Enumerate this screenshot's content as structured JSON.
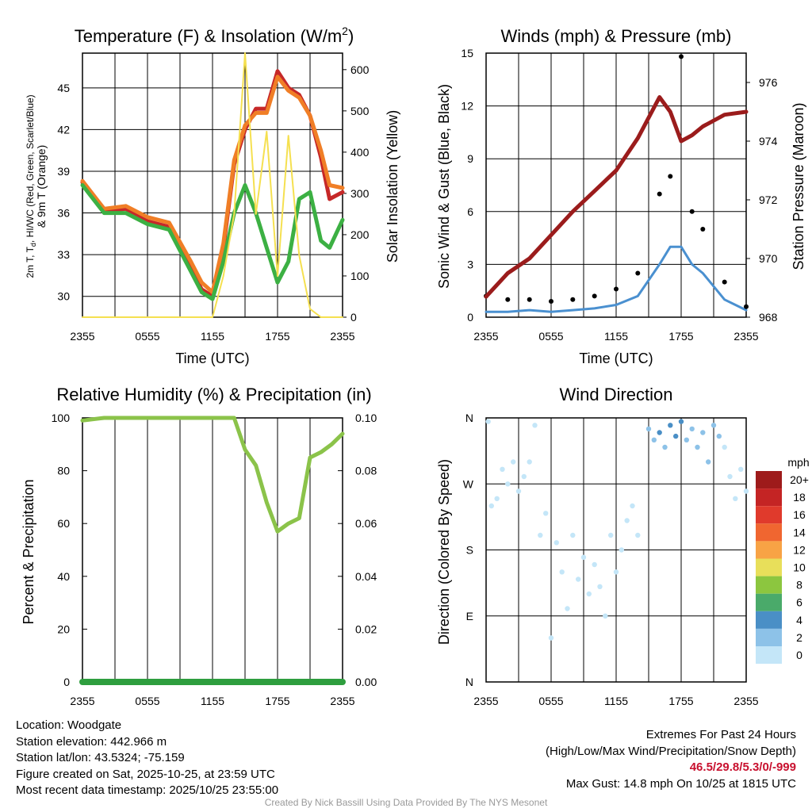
{
  "chart_data": [
    {
      "type": "line",
      "title": "Temperature (F) & Insolation (W/m²)",
      "title_main": "Temperature (F) & Insolation (W/m",
      "title_sup": "2",
      "title_tail": ")",
      "xlabel": "Time (UTC)",
      "ylabel_line1": "2m T, T",
      "ylabel_sub": "d",
      "ylabel_line1_tail": ", HI/WC (Red, Green, Scarlet/Blue)",
      "ylabel_line2": "& 9m T (Orange)",
      "ylabel_right": "Solar Insolation (Yellow)",
      "xticks": [
        "2355",
        "0555",
        "1155",
        "1755",
        "2355"
      ],
      "ylim": [
        28.5,
        47.5
      ],
      "yticks": [
        30,
        33,
        36,
        39,
        42,
        45
      ],
      "y2lim": [
        0,
        640
      ],
      "y2ticks": [
        0,
        100,
        200,
        300,
        400,
        500,
        600
      ],
      "x_hours": [
        0,
        2,
        4,
        6,
        8,
        10,
        11,
        12,
        13,
        14,
        15,
        16,
        17,
        18,
        19,
        20,
        21,
        22,
        22.8,
        24
      ],
      "series": [
        {
          "name": "2m T",
          "color": "#c62828",
          "values": [
            38.2,
            36.1,
            36.3,
            35.4,
            35.0,
            32.0,
            30.5,
            30.0,
            33.5,
            39.5,
            42.0,
            43.5,
            43.5,
            46.2,
            45.0,
            44.5,
            43.0,
            40.0,
            37.0,
            37.5
          ]
        },
        {
          "name": "9m T",
          "color": "#f07e26",
          "values": [
            38.3,
            36.3,
            36.5,
            35.7,
            35.3,
            32.5,
            31.0,
            30.3,
            33.8,
            39.8,
            42.3,
            43.2,
            43.2,
            45.8,
            44.8,
            44.3,
            43.0,
            40.5,
            38.0,
            37.8
          ]
        },
        {
          "name": "Td",
          "color": "#3cb043",
          "values": [
            38.0,
            36.0,
            36.0,
            35.2,
            34.8,
            31.8,
            30.3,
            29.8,
            32.5,
            36.0,
            38.0,
            36.0,
            33.5,
            31.0,
            32.5,
            37.0,
            37.5,
            34.0,
            33.5,
            35.5
          ]
        },
        {
          "name": "Solar Insolation",
          "color": "#f5e050",
          "axis": "right",
          "values": [
            0,
            0,
            0,
            0,
            0,
            0,
            0,
            0,
            100,
            250,
            640,
            250,
            450,
            100,
            440,
            150,
            20,
            0,
            0,
            0
          ]
        }
      ]
    },
    {
      "type": "line",
      "title": "Winds (mph) & Pressure (mb)",
      "xlabel": "Time (UTC)",
      "ylabel": "Sonic Wind & Gust (Blue, Black)",
      "ylabel_right": "Station Pressure (Maroon)",
      "xticks": [
        "2355",
        "0555",
        "1155",
        "1755",
        "2355"
      ],
      "ylim": [
        0,
        15
      ],
      "yticks": [
        0,
        3,
        6,
        9,
        12,
        15
      ],
      "y2lim": [
        968,
        977
      ],
      "y2ticks": [
        968,
        970,
        972,
        974,
        976
      ],
      "x_hours": [
        0,
        2,
        4,
        6,
        8,
        10,
        12,
        14,
        16,
        17,
        18,
        19,
        20,
        22,
        24
      ],
      "series": [
        {
          "name": "Sonic Wind",
          "color": "#4a90d0",
          "values": [
            0.3,
            0.3,
            0.4,
            0.3,
            0.4,
            0.5,
            0.7,
            1.2,
            3.0,
            4.0,
            4.0,
            3.0,
            2.5,
            1.0,
            0.4
          ]
        },
        {
          "name": "Wind Gust",
          "color": "#000000",
          "style": "dots",
          "values": [
            1.2,
            1.0,
            1.0,
            0.9,
            1.0,
            1.2,
            1.6,
            2.5,
            7.0,
            8.0,
            14.8,
            6.0,
            5.0,
            2.0,
            0.6
          ]
        },
        {
          "name": "Station Pressure",
          "color": "#9b1c1c",
          "axis": "right",
          "values": [
            968.7,
            969.5,
            970.0,
            970.8,
            971.6,
            972.3,
            973.0,
            974.1,
            975.5,
            975.0,
            974.0,
            974.2,
            974.5,
            974.9,
            975.0
          ]
        }
      ]
    },
    {
      "type": "line",
      "title": "Relative Humidity (%) & Precipitation (in)",
      "ylabel": "Percent & Precipitation",
      "xticks": [
        "2355",
        "0555",
        "1155",
        "1755",
        "2355"
      ],
      "ylim": [
        0,
        100
      ],
      "yticks": [
        0,
        20,
        40,
        60,
        80,
        100
      ],
      "y2lim": [
        0,
        0.1
      ],
      "y2ticks": [
        "0.00",
        "0.02",
        "0.04",
        "0.06",
        "0.08",
        "0.10"
      ],
      "x_hours": [
        0,
        2,
        4,
        6,
        8,
        10,
        12,
        14,
        15,
        16,
        17,
        18,
        19,
        20,
        21,
        22,
        23,
        24
      ],
      "series": [
        {
          "name": "Relative Humidity",
          "color": "#8bc34a",
          "values": [
            99,
            100,
            100,
            100,
            100,
            100,
            100,
            100,
            88,
            82,
            68,
            57,
            60,
            62,
            85,
            87,
            90,
            94
          ]
        },
        {
          "name": "Precipitation",
          "color": "#2e9e3e",
          "axis": "right",
          "values": [
            0,
            0,
            0,
            0,
            0,
            0,
            0,
            0,
            0,
            0,
            0,
            0,
            0,
            0,
            0,
            0,
            0,
            0
          ]
        }
      ]
    },
    {
      "type": "scatter",
      "title": "Wind Direction",
      "ylabel": "Direction (Colored By Speed)",
      "xticks": [
        "2355",
        "0555",
        "1155",
        "1755",
        "2355"
      ],
      "yticks": [
        "N",
        "E",
        "S",
        "W",
        "N"
      ],
      "ylim": [
        0,
        360
      ],
      "colorbar": {
        "title": "mph",
        "labels": [
          "20+",
          "18",
          "16",
          "14",
          "12",
          "10",
          "8",
          "6",
          "4",
          "2",
          "0"
        ],
        "colors": [
          "#9e1b1b",
          "#c42424",
          "#e03a2c",
          "#f06630",
          "#f8a345",
          "#e8df5a",
          "#8cc63f",
          "#4aaa6a",
          "#4a8fc6",
          "#8dc2e8",
          "#c4e6f8"
        ]
      },
      "points": [
        {
          "h": 0.2,
          "d": 355,
          "s": 1
        },
        {
          "h": 0.5,
          "d": 240,
          "s": 1
        },
        {
          "h": 1.0,
          "d": 250,
          "s": 1
        },
        {
          "h": 1.5,
          "d": 290,
          "s": 1
        },
        {
          "h": 2.0,
          "d": 270,
          "s": 1
        },
        {
          "h": 2.5,
          "d": 300,
          "s": 1
        },
        {
          "h": 3.0,
          "d": 260,
          "s": 1
        },
        {
          "h": 3.5,
          "d": 280,
          "s": 1
        },
        {
          "h": 4.0,
          "d": 300,
          "s": 1
        },
        {
          "h": 4.5,
          "d": 350,
          "s": 1
        },
        {
          "h": 5.0,
          "d": 200,
          "s": 1
        },
        {
          "h": 5.5,
          "d": 230,
          "s": 1
        },
        {
          "h": 6.0,
          "d": 60,
          "s": 1
        },
        {
          "h": 6.5,
          "d": 190,
          "s": 1
        },
        {
          "h": 7.0,
          "d": 150,
          "s": 1
        },
        {
          "h": 7.5,
          "d": 100,
          "s": 1
        },
        {
          "h": 8.0,
          "d": 200,
          "s": 1
        },
        {
          "h": 8.5,
          "d": 140,
          "s": 1
        },
        {
          "h": 9.0,
          "d": 170,
          "s": 1
        },
        {
          "h": 9.5,
          "d": 120,
          "s": 1
        },
        {
          "h": 10.0,
          "d": 160,
          "s": 1
        },
        {
          "h": 10.5,
          "d": 130,
          "s": 1
        },
        {
          "h": 11.0,
          "d": 90,
          "s": 1
        },
        {
          "h": 11.5,
          "d": 200,
          "s": 1
        },
        {
          "h": 12.0,
          "d": 150,
          "s": 1
        },
        {
          "h": 12.5,
          "d": 180,
          "s": 1
        },
        {
          "h": 13.0,
          "d": 220,
          "s": 1
        },
        {
          "h": 13.5,
          "d": 240,
          "s": 1
        },
        {
          "h": 14.0,
          "d": 200,
          "s": 1
        },
        {
          "h": 15.0,
          "d": 345,
          "s": 3
        },
        {
          "h": 15.5,
          "d": 330,
          "s": 3
        },
        {
          "h": 16.0,
          "d": 340,
          "s": 4
        },
        {
          "h": 16.5,
          "d": 320,
          "s": 3
        },
        {
          "h": 17.0,
          "d": 350,
          "s": 4
        },
        {
          "h": 17.5,
          "d": 335,
          "s": 4
        },
        {
          "h": 18.0,
          "d": 355,
          "s": 5
        },
        {
          "h": 18.5,
          "d": 330,
          "s": 3
        },
        {
          "h": 19.0,
          "d": 345,
          "s": 3
        },
        {
          "h": 19.5,
          "d": 320,
          "s": 3
        },
        {
          "h": 20.0,
          "d": 340,
          "s": 3
        },
        {
          "h": 20.5,
          "d": 300,
          "s": 3
        },
        {
          "h": 21.0,
          "d": 350,
          "s": 2
        },
        {
          "h": 21.5,
          "d": 335,
          "s": 2
        },
        {
          "h": 22.0,
          "d": 320,
          "s": 1
        },
        {
          "h": 22.5,
          "d": 280,
          "s": 1
        },
        {
          "h": 23.0,
          "d": 250,
          "s": 1
        },
        {
          "h": 23.5,
          "d": 290,
          "s": 1
        },
        {
          "h": 24.0,
          "d": 260,
          "s": 1
        }
      ]
    }
  ],
  "info": {
    "location": "Location: Woodgate",
    "elevation": "Station elevation: 442.966 m",
    "latlon": "Station lat/lon: 43.5324; -75.159",
    "created": "Figure created on Sat, 2025-10-25, at 23:59 UTC",
    "recent": "Most recent data timestamp: 2025/10/25 23:55:00"
  },
  "extremes": {
    "title": "Extremes For Past 24 Hours",
    "legend": "(High/Low/Max Wind/Precipitation/Snow Depth)",
    "values": "46.5/29.8/5.3/0/-999",
    "gust": "Max Gust: 14.8 mph On 10/25 at 1815 UTC"
  },
  "credit": "Created By Nick Bassill Using Data Provided By The NYS Mesonet"
}
